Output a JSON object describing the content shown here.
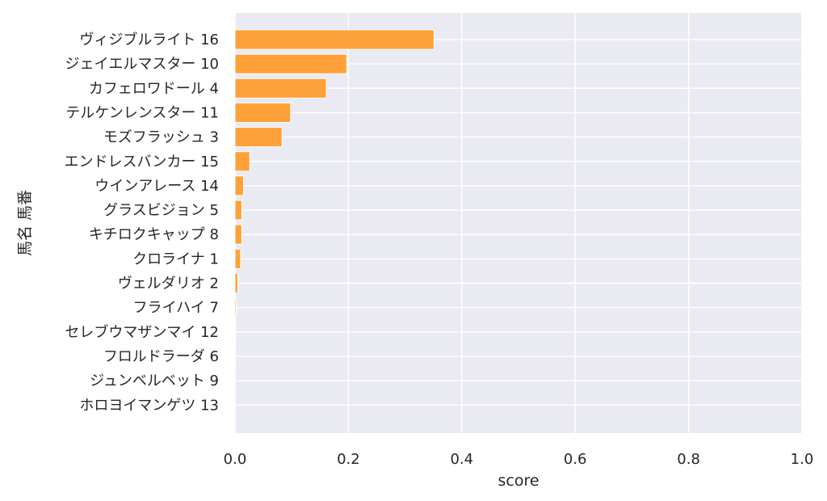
{
  "chart_data": {
    "type": "bar",
    "orientation": "horizontal",
    "title": "",
    "xlabel": "score",
    "ylabel": "馬名 馬番",
    "xlim": [
      0,
      1.0
    ],
    "xticks": [
      "0.0",
      "0.2",
      "0.4",
      "0.6",
      "0.8",
      "1.0"
    ],
    "grid": true,
    "bar_color": "#FF9D2E",
    "plot_background": "#EAEAF2",
    "categories": [
      "ヴィジブルライト 16",
      "ジェイエルマスター 10",
      "カフェロワドール 4",
      "テルケンレンスター 11",
      "モズフラッシュ 3",
      "エンドレスバンカー 15",
      "ウインアレース 14",
      "グラスビジョン 5",
      "キチロクキャップ 8",
      "クロライナ 1",
      "ヴェルダリオ 2",
      "フライハイ 7",
      "セレブウマザンマイ 12",
      "フロルドラーダ 6",
      "ジュンベルベット 9",
      "ホロヨイマンゲツ 13"
    ],
    "values": [
      0.351,
      0.197,
      0.161,
      0.098,
      0.083,
      0.026,
      0.015,
      0.012,
      0.012,
      0.01,
      0.005,
      0.002,
      0.001,
      0.0005,
      0.0,
      0.0
    ]
  }
}
